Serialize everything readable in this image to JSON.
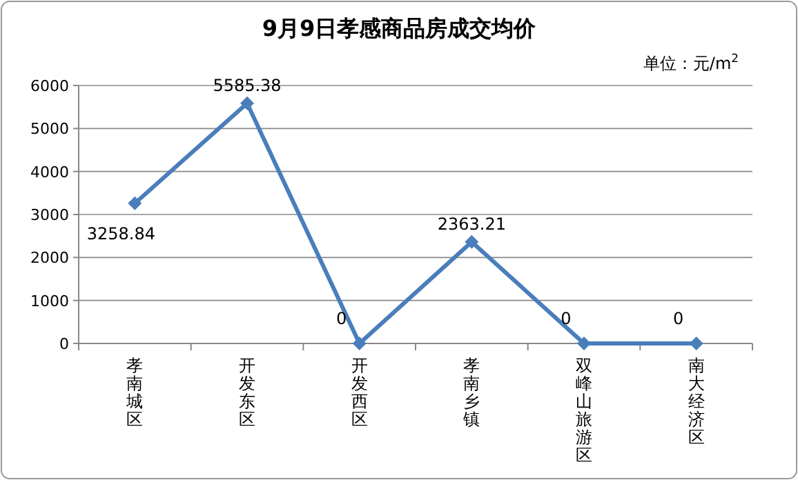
{
  "chart_data": {
    "type": "line",
    "title": "9月9日孝感商品房成交均价",
    "annotations": [
      "单位：元/m$^{2}$"
    ],
    "categories": [
      "孝南城区",
      "开发东区",
      "开发西区",
      "孝南乡镇",
      "双峰山旅游区",
      "南大经济区"
    ],
    "series": [
      {
        "color": "#4a7ebb",
        "values": [
          3258.84,
          5585.38,
          0,
          2363.21,
          0,
          0
        ]
      }
    ],
    "ylim": [
      0,
      6000
    ],
    "yticks": [
      0,
      1000,
      2000,
      3000,
      4000,
      5000,
      6000
    ],
    "grid": "y",
    "marker": "diamond",
    "line_style": "solid",
    "data_labels": true
  }
}
